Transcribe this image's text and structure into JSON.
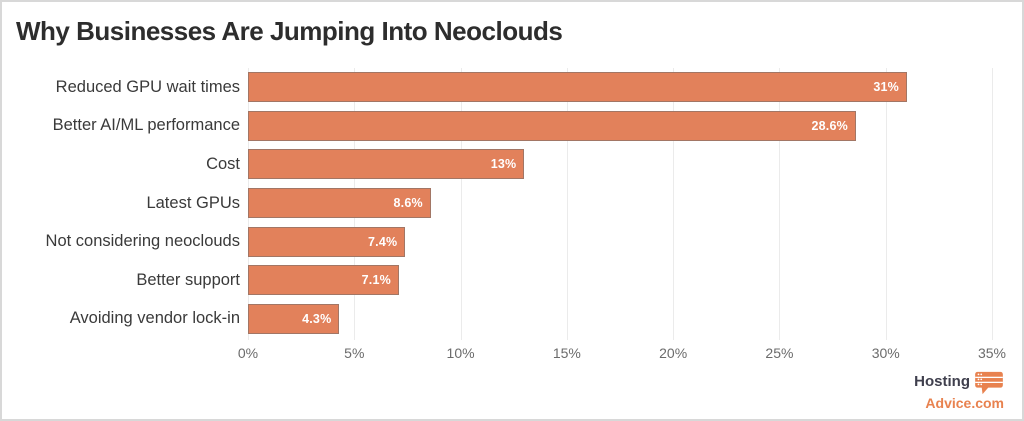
{
  "title": "Why Businesses Are Jumping Into Neoclouds",
  "chart_data": {
    "type": "bar",
    "orientation": "horizontal",
    "title": "Why Businesses Are Jumping Into Neoclouds",
    "categories": [
      "Reduced GPU wait times",
      "Better AI/ML performance",
      "Cost",
      "Latest GPUs",
      "Not considering neoclouds",
      "Better support",
      "Avoiding vendor lock-in"
    ],
    "values": [
      31,
      28.6,
      13,
      8.6,
      7.4,
      7.1,
      4.3
    ],
    "value_labels": [
      "31%",
      "28.6%",
      "13%",
      "8.6%",
      "7.4%",
      "7.1%",
      "4.3%"
    ],
    "xlabel": "",
    "ylabel": "",
    "xlim": [
      0,
      35
    ],
    "tick_values": [
      0,
      5,
      10,
      15,
      20,
      25,
      30,
      35
    ],
    "x_tick_labels": [
      "0%",
      "5%",
      "10%",
      "15%",
      "20%",
      "25%",
      "30%",
      "35%"
    ],
    "grid": "vertical",
    "legend": "none",
    "bar_color": "#E2815B",
    "bar_border_color": "#6E6E6E",
    "value_label_color": "#FFFFFF"
  },
  "branding": {
    "logo_line1": "Hosting",
    "logo_line2": "Advice.com",
    "icon": "speech-bubble-server-icon",
    "logo_color_dark": "#3F3F4D",
    "logo_color_orange": "#E8824F"
  }
}
